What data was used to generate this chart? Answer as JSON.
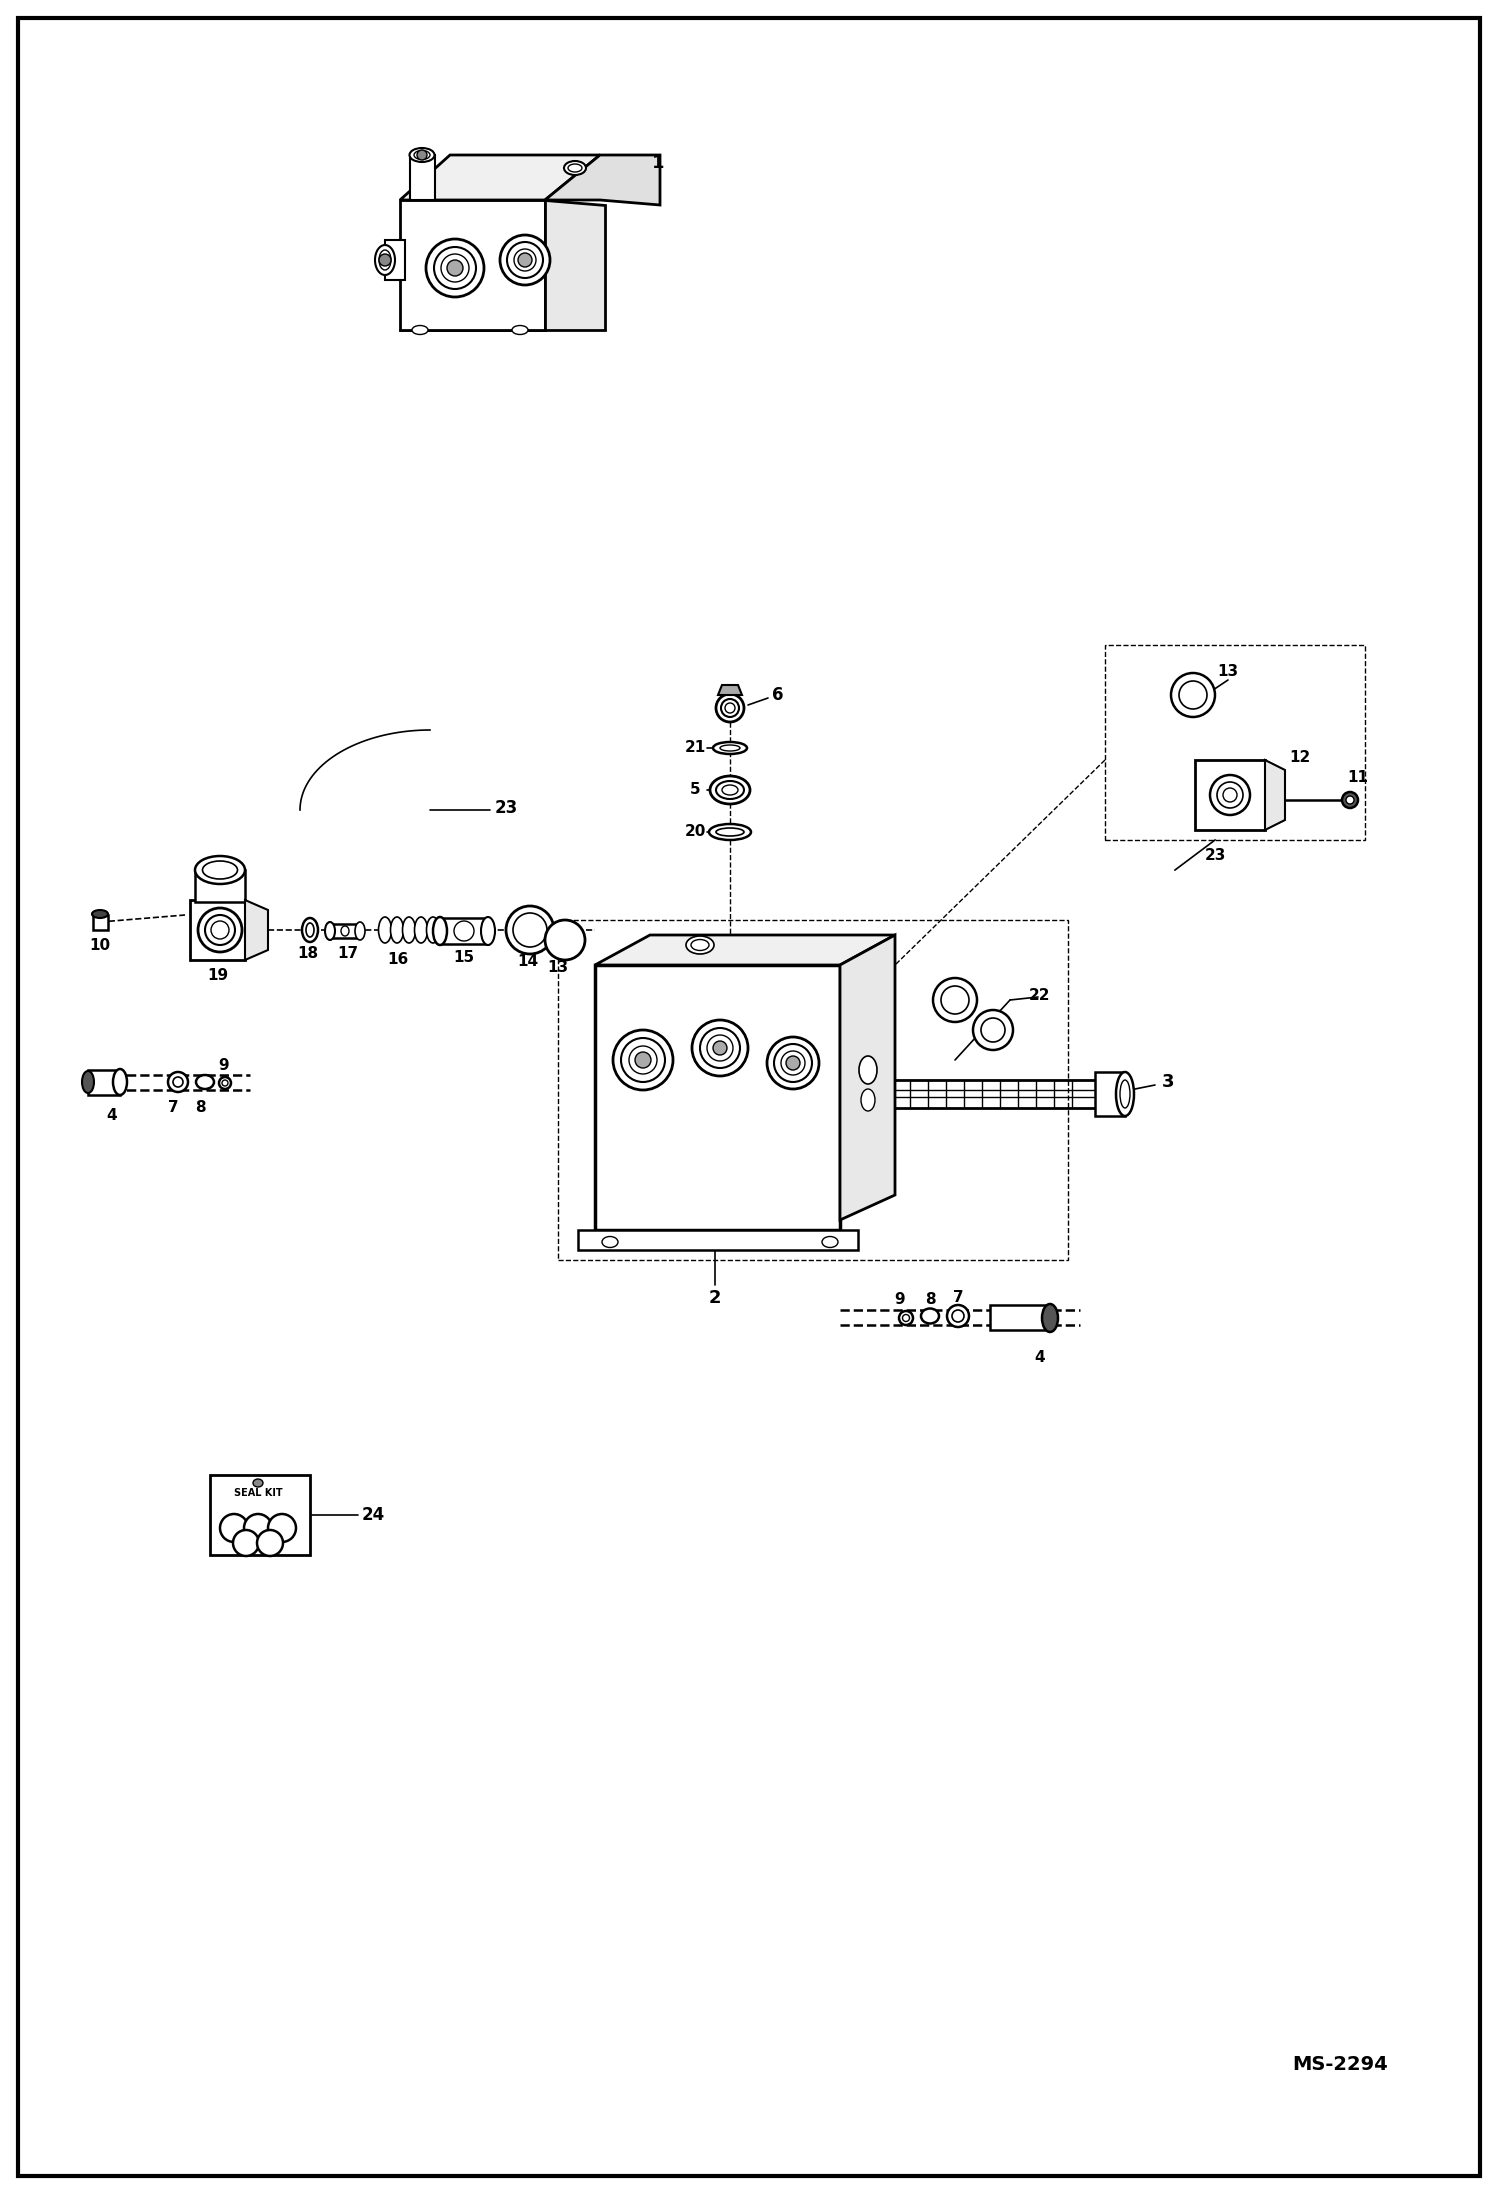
{
  "bg_color": "#ffffff",
  "lc": "#000000",
  "ms_label": "MS-2294",
  "figsize": [
    14.98,
    21.94
  ],
  "dpi": 100
}
